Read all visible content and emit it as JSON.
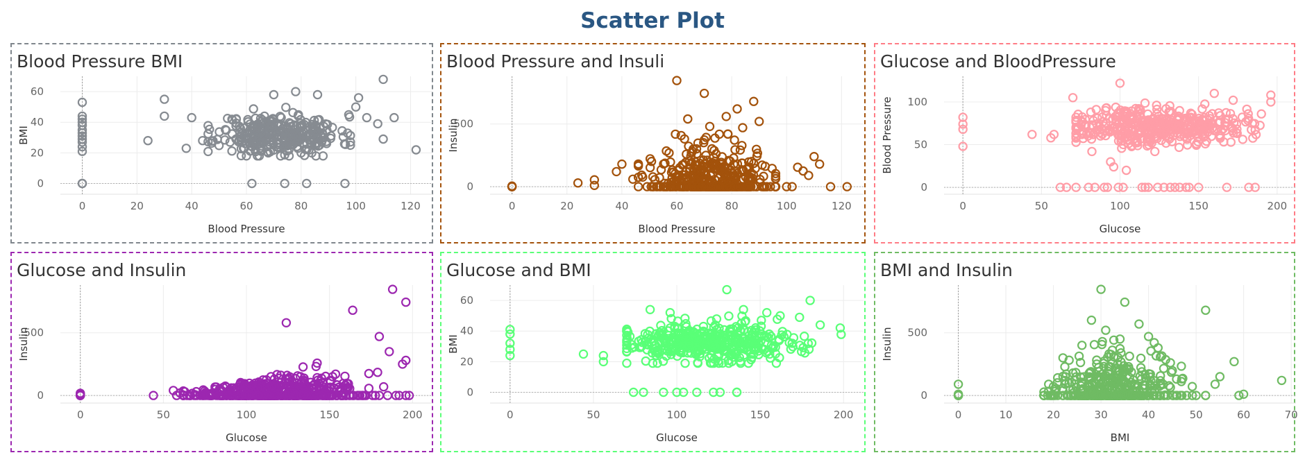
{
  "title": "Scatter Plot",
  "chart_data": [
    {
      "type": "scatter",
      "title": "Blood Pressure BMI",
      "xlabel": "Blood Pressure",
      "ylabel": "BMI",
      "color": "#868b91",
      "xlim": [
        -8,
        128
      ],
      "ylim": [
        -7,
        70
      ],
      "xticks": [
        0,
        20,
        40,
        60,
        80,
        100,
        120
      ],
      "yticks": [
        0,
        20,
        40,
        60
      ],
      "gen": {
        "type": "bp_bmi",
        "n": 320,
        "seed": 11
      },
      "points": [
        [
          0,
          0
        ],
        [
          0,
          0
        ],
        [
          0,
          0
        ],
        [
          0,
          21
        ],
        [
          0,
          24
        ],
        [
          0,
          27
        ],
        [
          0,
          29
        ],
        [
          0,
          31
        ],
        [
          0,
          33
        ],
        [
          0,
          35
        ],
        [
          0,
          38
        ],
        [
          0,
          40
        ],
        [
          0,
          42
        ],
        [
          0,
          44
        ],
        [
          0,
          53
        ],
        [
          24,
          28
        ],
        [
          30,
          55
        ],
        [
          30,
          44
        ],
        [
          38,
          23
        ],
        [
          40,
          43
        ],
        [
          44,
          28
        ],
        [
          62,
          0
        ],
        [
          74,
          0
        ],
        [
          82,
          0
        ],
        [
          96,
          0
        ],
        [
          110,
          68
        ],
        [
          101,
          56
        ],
        [
          100,
          50
        ],
        [
          104,
          43
        ],
        [
          108,
          39
        ],
        [
          110,
          29
        ],
        [
          122,
          22
        ],
        [
          114,
          43
        ],
        [
          70,
          58
        ],
        [
          78,
          60
        ],
        [
          86,
          58
        ],
        [
          68,
          20
        ],
        [
          80,
          20
        ],
        [
          88,
          18
        ]
      ]
    },
    {
      "type": "scatter",
      "title": "Blood Pressure and Insuli",
      "xlabel": "Blood Pressure",
      "ylabel": "Insulin",
      "color": "#a3520b",
      "xlim": [
        -8,
        128
      ],
      "ylim": [
        -60,
        880
      ],
      "xticks": [
        0,
        20,
        40,
        60,
        80,
        100,
        120
      ],
      "yticks": [
        0,
        500
      ],
      "gen": {
        "type": "bp_ins",
        "n": 420,
        "seed": 23
      },
      "points": [
        [
          0,
          0
        ],
        [
          0,
          0
        ],
        [
          0,
          0
        ],
        [
          0,
          5
        ],
        [
          24,
          30
        ],
        [
          30,
          55
        ],
        [
          30,
          10
        ],
        [
          38,
          120
        ],
        [
          40,
          180
        ],
        [
          44,
          60
        ],
        [
          60,
          846
        ],
        [
          70,
          744
        ],
        [
          64,
          540
        ],
        [
          88,
          680
        ],
        [
          82,
          620
        ],
        [
          78,
          560
        ],
        [
          72,
          480
        ],
        [
          84,
          470
        ],
        [
          66,
          300
        ],
        [
          90,
          520
        ],
        [
          96,
          0
        ],
        [
          100,
          0
        ],
        [
          102,
          0
        ],
        [
          104,
          155
        ],
        [
          106,
          125
        ],
        [
          108,
          90
        ],
        [
          110,
          240
        ],
        [
          112,
          180
        ],
        [
          116,
          0
        ],
        [
          122,
          0
        ]
      ]
    },
    {
      "type": "scatter",
      "title": "Glucose and BloodPressure",
      "xlabel": "Glucose",
      "ylabel": "Blood Pressure",
      "color": "#ff9da7",
      "xlim": [
        -12,
        212
      ],
      "ylim": [
        -8,
        130
      ],
      "xticks": [
        0,
        50,
        100,
        150,
        200
      ],
      "yticks": [
        0,
        50,
        100
      ],
      "gen": {
        "type": "gl_bp",
        "n": 420,
        "seed": 37
      },
      "points": [
        [
          0,
          48
        ],
        [
          0,
          68
        ],
        [
          0,
          74
        ],
        [
          0,
          82
        ],
        [
          44,
          62
        ],
        [
          56,
          58
        ],
        [
          58,
          62
        ],
        [
          70,
          105
        ],
        [
          100,
          122
        ],
        [
          94,
          30
        ],
        [
          96,
          24
        ],
        [
          104,
          20
        ],
        [
          150,
          0
        ],
        [
          62,
          0
        ],
        [
          66,
          0
        ],
        [
          72,
          0
        ],
        [
          80,
          0
        ],
        [
          84,
          0
        ],
        [
          90,
          0
        ],
        [
          92,
          0
        ],
        [
          99,
          0
        ],
        [
          102,
          0
        ],
        [
          114,
          0
        ],
        [
          116,
          0
        ],
        [
          118,
          0
        ],
        [
          124,
          0
        ],
        [
          128,
          0
        ],
        [
          132,
          0
        ],
        [
          135,
          0
        ],
        [
          138,
          0
        ],
        [
          142,
          0
        ],
        [
          144,
          0
        ],
        [
          168,
          0
        ],
        [
          182,
          0
        ],
        [
          186,
          0
        ],
        [
          160,
          110
        ],
        [
          172,
          102
        ],
        [
          196,
          108
        ],
        [
          196,
          100
        ],
        [
          190,
          86
        ]
      ]
    },
    {
      "type": "scatter",
      "title": "Glucose and Insulin",
      "xlabel": "Glucose",
      "ylabel": "Insulin",
      "color": "#9c27b0",
      "xlim": [
        -12,
        212
      ],
      "ylim": [
        -60,
        880
      ],
      "xticks": [
        0,
        50,
        100,
        150,
        200
      ],
      "yticks": [
        0,
        500
      ],
      "gen": {
        "type": "gl_ins",
        "n": 430,
        "seed": 41
      },
      "points": [
        [
          0,
          0
        ],
        [
          0,
          0
        ],
        [
          0,
          0
        ],
        [
          0,
          10
        ],
        [
          0,
          18
        ],
        [
          44,
          0
        ],
        [
          56,
          40
        ],
        [
          58,
          0
        ],
        [
          60,
          20
        ],
        [
          188,
          846
        ],
        [
          196,
          744
        ],
        [
          164,
          680
        ],
        [
          124,
          580
        ],
        [
          180,
          470
        ],
        [
          194,
          250
        ],
        [
          196,
          280
        ],
        [
          186,
          350
        ],
        [
          196,
          0
        ],
        [
          192,
          0
        ],
        [
          190,
          0
        ],
        [
          198,
          0
        ],
        [
          180,
          0
        ],
        [
          176,
          0
        ],
        [
          170,
          0
        ],
        [
          164,
          0
        ],
        [
          160,
          0
        ],
        [
          154,
          0
        ],
        [
          150,
          0
        ],
        [
          146,
          0
        ],
        [
          142,
          0
        ],
        [
          138,
          0
        ],
        [
          134,
          0
        ],
        [
          130,
          0
        ],
        [
          126,
          0
        ],
        [
          122,
          0
        ],
        [
          118,
          0
        ],
        [
          114,
          0
        ],
        [
          110,
          0
        ],
        [
          106,
          0
        ],
        [
          102,
          0
        ],
        [
          98,
          0
        ],
        [
          94,
          0
        ],
        [
          90,
          0
        ],
        [
          86,
          0
        ],
        [
          82,
          0
        ],
        [
          78,
          0
        ],
        [
          74,
          0
        ],
        [
          70,
          0
        ],
        [
          66,
          0
        ],
        [
          62,
          0
        ]
      ]
    },
    {
      "type": "scatter",
      "title": "Glucose and BMI",
      "xlabel": "Glucose",
      "ylabel": "BMI",
      "color": "#59ff77",
      "xlim": [
        -12,
        212
      ],
      "ylim": [
        -7,
        70
      ],
      "xticks": [
        0,
        50,
        100,
        150,
        200
      ],
      "yticks": [
        0,
        20,
        40,
        60
      ],
      "gen": {
        "type": "gl_bmi",
        "n": 430,
        "seed": 53
      },
      "points": [
        [
          0,
          24
        ],
        [
          0,
          28
        ],
        [
          0,
          32
        ],
        [
          0,
          38
        ],
        [
          0,
          41
        ],
        [
          44,
          25
        ],
        [
          56,
          24
        ],
        [
          56,
          20
        ],
        [
          74,
          0
        ],
        [
          80,
          0
        ],
        [
          92,
          0
        ],
        [
          100,
          0
        ],
        [
          104,
          0
        ],
        [
          112,
          0
        ],
        [
          122,
          0
        ],
        [
          126,
          0
        ],
        [
          136,
          0
        ],
        [
          136,
          0
        ],
        [
          180,
          60
        ],
        [
          130,
          67
        ],
        [
          84,
          54
        ],
        [
          96,
          52
        ],
        [
          140,
          54
        ],
        [
          154,
          52
        ],
        [
          162,
          50
        ],
        [
          186,
          44
        ],
        [
          198,
          42
        ]
      ]
    },
    {
      "type": "scatter",
      "title": "BMI and Insulin",
      "xlabel": "BMI",
      "ylabel": "Insulin",
      "color": "#6fbb63",
      "xlim": [
        -3,
        71
      ],
      "ylim": [
        -60,
        880
      ],
      "xticks": [
        0,
        10,
        20,
        30,
        40,
        50,
        60,
        70
      ],
      "yticks": [
        0,
        500
      ],
      "gen": {
        "type": "bmi_ins",
        "n": 400,
        "seed": 67
      },
      "points": [
        [
          0,
          0
        ],
        [
          0,
          0
        ],
        [
          0,
          0
        ],
        [
          0,
          90
        ],
        [
          0,
          10
        ],
        [
          18,
          0
        ],
        [
          20,
          0
        ],
        [
          22,
          0
        ],
        [
          19,
          90
        ],
        [
          30,
          846
        ],
        [
          35,
          744
        ],
        [
          28,
          600
        ],
        [
          38,
          570
        ],
        [
          52,
          680
        ],
        [
          31,
          520
        ],
        [
          40,
          470
        ],
        [
          34,
          450
        ],
        [
          26,
          400
        ],
        [
          22,
          300
        ],
        [
          54,
          90
        ],
        [
          55,
          150
        ],
        [
          58,
          270
        ],
        [
          59,
          0
        ],
        [
          68,
          120
        ],
        [
          60,
          10
        ],
        [
          42,
          380
        ],
        [
          46,
          0
        ],
        [
          48,
          0
        ],
        [
          50,
          0
        ],
        [
          52,
          0
        ],
        [
          44,
          0
        ]
      ]
    }
  ]
}
